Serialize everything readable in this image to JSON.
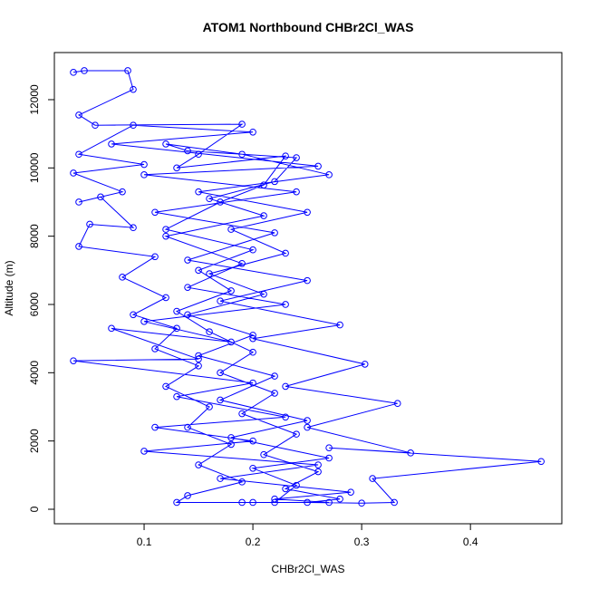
{
  "chart_data": {
    "type": "line",
    "title": "ATOM1 Northbound CHBr2Cl_WAS",
    "x_label": "CHBr2Cl_WAS",
    "y_label": "Altitude (m)",
    "color": "#0000ff",
    "markers": true,
    "xlim": [
      0.0175,
      0.484
    ],
    "ylim": [
      -425,
      13380
    ],
    "xticks": [
      0.1,
      0.2,
      0.3,
      0.4
    ],
    "yticks": [
      0,
      2000,
      4000,
      6000,
      8000,
      10000,
      12000
    ],
    "x": [
      0.035,
      0.045,
      0.085,
      0.09,
      0.04,
      0.055,
      0.19,
      0.15,
      0.13,
      0.23,
      0.21,
      0.17,
      0.12,
      0.2,
      0.15,
      0.18,
      0.13,
      0.16,
      0.2,
      0.17,
      0.22,
      0.19,
      0.24,
      0.21,
      0.26,
      0.23,
      0.28,
      0.25,
      0.3,
      0.33,
      0.31,
      0.465,
      0.27,
      0.345,
      0.25,
      0.333,
      0.23,
      0.303,
      0.2,
      0.28,
      0.17,
      0.25,
      0.14,
      0.22,
      0.11,
      0.24,
      0.1,
      0.26,
      0.07,
      0.2,
      0.09,
      0.04,
      0.1,
      0.035,
      0.08,
      0.04,
      0.06,
      0.09,
      0.05,
      0.04,
      0.11,
      0.08,
      0.12,
      0.09,
      0.13,
      0.11,
      0.15,
      0.12,
      0.16,
      0.14,
      0.18,
      0.15,
      0.19,
      0.14,
      0.13,
      0.19,
      0.22,
      0.24,
      0.2,
      0.27,
      0.18,
      0.25,
      0.17,
      0.22,
      0.15,
      0.2,
      0.14,
      0.21,
      0.16,
      0.23,
      0.18,
      0.25,
      0.15,
      0.27,
      0.19,
      0.12,
      0.14,
      0.24,
      0.22,
      0.16,
      0.21,
      0.12,
      0.19,
      0.14,
      0.23,
      0.1,
      0.18,
      0.07,
      0.15,
      0.035,
      0.2,
      0.13,
      0.23,
      0.11,
      0.2,
      0.1,
      0.26,
      0.17,
      0.29,
      0.22,
      0.27,
      0.2
    ],
    "values": [
      12800,
      12850,
      12850,
      12300,
      11550,
      11250,
      11280,
      10400,
      10000,
      10350,
      9500,
      9000,
      8200,
      7600,
      7000,
      6400,
      5800,
      5200,
      4600,
      4000,
      3400,
      2800,
      2200,
      1600,
      1100,
      600,
      300,
      200,
      180,
      200,
      900,
      1400,
      1800,
      1650,
      2400,
      3100,
      3600,
      4250,
      5000,
      5400,
      6100,
      6700,
      7300,
      8100,
      8700,
      9300,
      9800,
      10050,
      10700,
      11050,
      11250,
      10400,
      10100,
      9850,
      9300,
      9000,
      9150,
      8250,
      8350,
      7700,
      7400,
      6800,
      6200,
      5700,
      5300,
      4700,
      4200,
      3600,
      3000,
      2400,
      1900,
      1300,
      800,
      400,
      200,
      200,
      200,
      700,
      1200,
      1500,
      2100,
      2600,
      3200,
      3900,
      4500,
      5100,
      5700,
      6300,
      6900,
      7500,
      8200,
      8700,
      9300,
      9800,
      10400,
      10700,
      10500,
      10300,
      9600,
      9100,
      8600,
      8000,
      7200,
      6500,
      6000,
      5500,
      4900,
      5300,
      4400,
      4350,
      3700,
      3300,
      2700,
      2400,
      2000,
      1700,
      1300,
      900,
      500,
      300,
      200,
      200
    ]
  }
}
